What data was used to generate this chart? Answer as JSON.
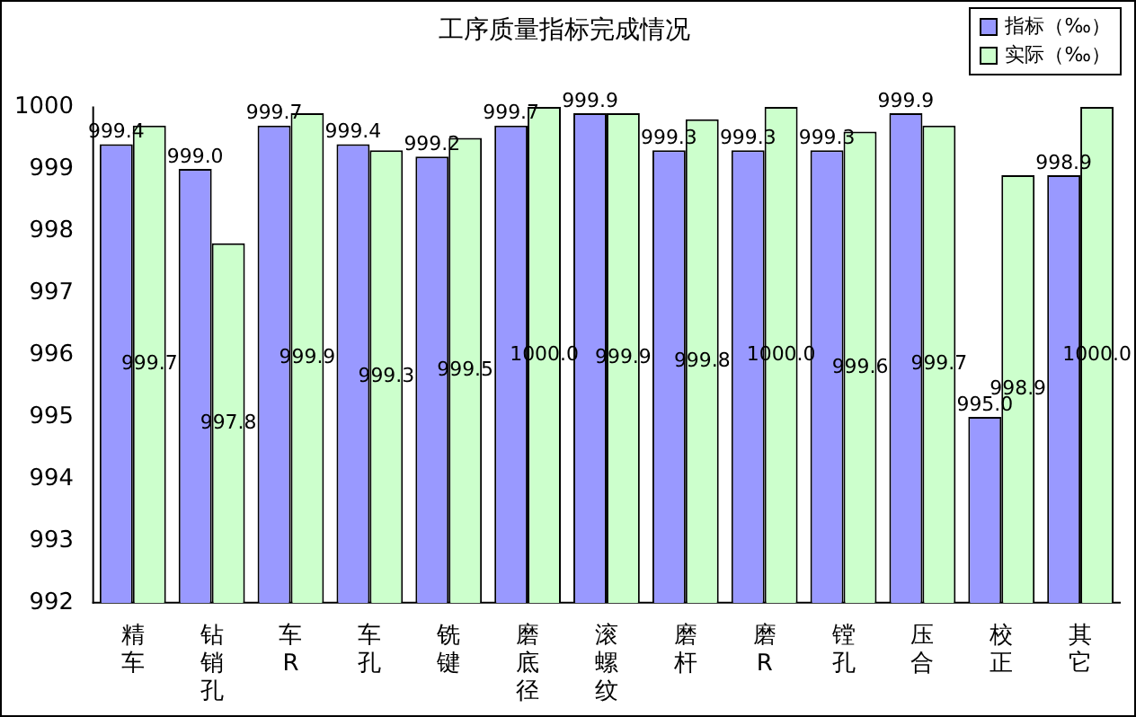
{
  "chart_data": {
    "type": "bar",
    "title": "工序质量指标完成情况",
    "categories": [
      "精车",
      "钻销孔",
      "车R",
      "车孔",
      "铣键",
      "磨底径",
      "滚螺纹",
      "磨杆",
      "磨R",
      "镗孔",
      "压合",
      "校正",
      "其它"
    ],
    "series": [
      {
        "name": "指标（‰）",
        "color": "#9999ff",
        "values": [
          999.4,
          999.0,
          999.7,
          999.4,
          999.2,
          999.7,
          999.9,
          999.3,
          999.3,
          999.3,
          999.9,
          995.0,
          998.9
        ],
        "value_labels": [
          "999.4",
          "999.0",
          "999.7",
          "999.4",
          "999.2",
          "999.7",
          "999.9",
          "999.3",
          "999.3",
          "999.3",
          "999.9",
          "995.0",
          "998.9"
        ]
      },
      {
        "name": "实际（‰）",
        "color": "#ccffcc",
        "values": [
          999.7,
          997.8,
          999.9,
          999.3,
          999.5,
          1000.0,
          999.9,
          999.8,
          1000.0,
          999.6,
          999.7,
          998.9,
          1000.0
        ],
        "value_labels": [
          "999.7",
          "997.8",
          "999.9",
          "999.3",
          "999.5",
          "1000.0",
          "999.9",
          "999.8",
          "1000.0",
          "999.6",
          "999.7",
          "998.9",
          "1000.0"
        ]
      }
    ],
    "ylim": [
      992,
      1000
    ],
    "yticks": [
      992,
      993,
      994,
      995,
      996,
      997,
      998,
      999,
      1000
    ],
    "grid": false,
    "legend": "top right"
  }
}
